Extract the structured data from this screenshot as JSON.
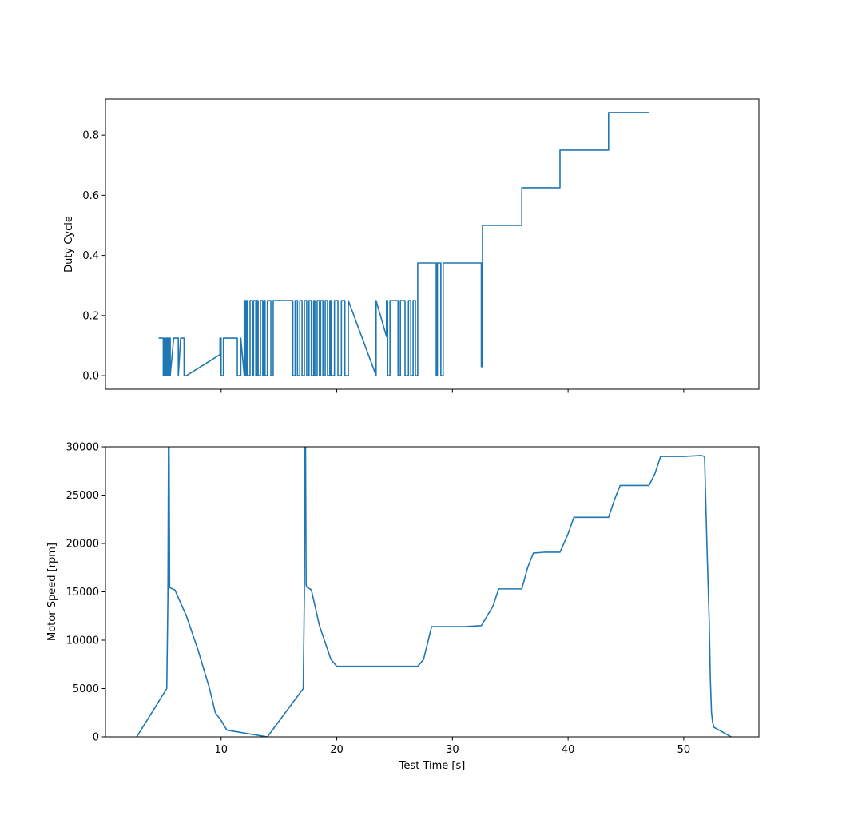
{
  "chart_data": [
    {
      "type": "line",
      "title": "",
      "xlabel": "",
      "ylabel": "Duty Cycle",
      "xlim": [
        0,
        56.5
      ],
      "ylim": [
        -0.045,
        0.92
      ],
      "xticks": [
        10,
        20,
        30,
        40,
        50
      ],
      "show_xtick_labels": false,
      "yticks": [
        0.0,
        0.2,
        0.4,
        0.6,
        0.8
      ],
      "ytick_labels": [
        "0.0",
        "0.2",
        "0.4",
        "0.6",
        "0.8"
      ],
      "grid": false,
      "color": "#1f77b4",
      "series": [
        {
          "name": "Duty Cycle",
          "x": [
            4.6,
            5.0,
            5.0,
            5.1,
            5.1,
            5.2,
            5.2,
            5.3,
            5.3,
            5.4,
            5.4,
            5.5,
            5.5,
            5.6,
            5.6,
            5.9,
            6.3,
            6.3,
            6.5,
            6.8,
            6.8,
            7.0,
            9.9,
            9.9,
            10.0,
            10.0,
            10.2,
            10.2,
            11.4,
            11.4,
            11.7,
            11.7,
            12.0,
            12.0,
            12.1,
            12.1,
            12.2,
            12.2,
            12.3,
            12.3,
            12.5,
            12.5,
            12.7,
            12.7,
            12.8,
            12.8,
            13.0,
            13.0,
            13.1,
            13.1,
            13.2,
            13.2,
            13.4,
            13.4,
            13.6,
            13.6,
            13.7,
            13.7,
            13.8,
            13.8,
            14.0,
            14.0,
            14.3,
            14.3,
            14.5,
            14.5,
            16.2,
            16.2,
            16.4,
            16.4,
            16.6,
            16.6,
            16.8,
            16.8,
            17.0,
            17.0,
            17.2,
            17.2,
            17.4,
            17.4,
            17.6,
            17.6,
            17.8,
            17.8,
            18.0,
            18.0,
            18.1,
            18.1,
            18.3,
            18.3,
            18.5,
            18.5,
            18.6,
            18.6,
            18.8,
            18.8,
            19.0,
            19.0,
            19.2,
            19.2,
            19.4,
            19.4,
            19.5,
            19.5,
            19.8,
            19.8,
            20.1,
            20.1,
            20.4,
            20.4,
            20.7,
            20.7,
            21.0,
            21.0,
            23.4,
            23.4,
            24.3,
            24.3,
            24.4,
            24.4,
            24.6,
            24.6,
            25.3,
            25.3,
            25.5,
            25.5,
            25.9,
            25.9,
            26.2,
            26.2,
            26.4,
            26.4,
            26.6,
            26.6,
            26.8,
            26.8,
            27.0,
            27.0,
            28.6,
            28.6,
            28.7,
            28.7,
            29.0,
            29.0,
            29.2,
            29.2,
            32.5,
            32.5,
            32.6,
            32.6,
            36.0,
            36.0,
            39.3,
            39.3,
            43.5,
            43.5,
            47.0
          ],
          "y": [
            0.125,
            0.125,
            0.0,
            0.0,
            0.125,
            0.125,
            0.0,
            0.0,
            0.125,
            0.125,
            0.0,
            0.0,
            0.125,
            0.125,
            0.0,
            0.125,
            0.125,
            0.0,
            0.125,
            0.125,
            0.0,
            0.0,
            0.07,
            0.125,
            0.125,
            0.0,
            0.0,
            0.125,
            0.125,
            0.0,
            0.0,
            0.125,
            0.0,
            0.25,
            0.25,
            0.0,
            0.0,
            0.25,
            0.25,
            0.0,
            0.0,
            0.25,
            0.25,
            0.0,
            0.0,
            0.25,
            0.25,
            0.0,
            0.0,
            0.25,
            0.25,
            0.0,
            0.0,
            0.25,
            0.25,
            0.0,
            0.0,
            0.25,
            0.25,
            0.0,
            0.0,
            0.25,
            0.25,
            0.0,
            0.0,
            0.25,
            0.25,
            0.0,
            0.0,
            0.25,
            0.25,
            0.0,
            0.0,
            0.25,
            0.25,
            0.0,
            0.0,
            0.25,
            0.25,
            0.0,
            0.0,
            0.25,
            0.25,
            0.0,
            0.0,
            0.25,
            0.25,
            0.0,
            0.0,
            0.25,
            0.25,
            0.0,
            0.0,
            0.25,
            0.25,
            0.0,
            0.0,
            0.25,
            0.25,
            0.0,
            0.0,
            0.25,
            0.25,
            0.0,
            0.0,
            0.25,
            0.25,
            0.0,
            0.0,
            0.25,
            0.25,
            0.0,
            0.0,
            0.25,
            0.0,
            0.25,
            0.13,
            0.25,
            0.25,
            0.0,
            0.0,
            0.25,
            0.25,
            0.0,
            0.0,
            0.25,
            0.25,
            0.0,
            0.0,
            0.25,
            0.25,
            0.0,
            0.0,
            0.25,
            0.25,
            0.0,
            0.0,
            0.375,
            0.375,
            0.0,
            0.0,
            0.375,
            0.375,
            0.0,
            0.0,
            0.375,
            0.375,
            0.03,
            0.03,
            0.5,
            0.5,
            0.625,
            0.625,
            0.75,
            0.75,
            0.875,
            0.875
          ]
        }
      ]
    },
    {
      "type": "line",
      "title": "",
      "xlabel": "Test Time [s]",
      "ylabel": "Motor Speed [rpm]",
      "xlim": [
        0,
        56.5
      ],
      "ylim": [
        0,
        30000
      ],
      "xticks": [
        10,
        20,
        30,
        40,
        50
      ],
      "xtick_labels": [
        "10",
        "20",
        "30",
        "40",
        "50"
      ],
      "yticks": [
        0,
        5000,
        10000,
        15000,
        20000,
        25000,
        30000
      ],
      "ytick_labels": [
        "0",
        "5000",
        "10000",
        "15000",
        "20000",
        "25000",
        "30000"
      ],
      "grid": false,
      "color": "#1f77b4",
      "series": [
        {
          "name": "Motor Speed",
          "x": [
            2.7,
            5.3,
            5.4,
            5.45,
            5.5,
            5.55,
            5.6,
            6.0,
            7.0,
            8.0,
            9.0,
            9.5,
            10.0,
            10.5,
            14.0,
            17.1,
            17.2,
            17.25,
            17.3,
            17.35,
            17.4,
            17.8,
            18.5,
            19.5,
            20.0,
            23.0,
            25.0,
            27.0,
            27.5,
            28.2,
            29.0,
            30.0,
            31.0,
            32.5,
            33.5,
            34.0,
            35.0,
            36.0,
            36.5,
            37.0,
            38.0,
            39.3,
            40.0,
            40.5,
            41.5,
            42.5,
            43.5,
            44.0,
            44.5,
            46.0,
            47.0,
            47.5,
            48.0,
            50.0,
            51.5,
            51.8,
            52.0,
            52.2,
            52.3,
            52.4,
            52.5,
            52.6,
            54.1
          ],
          "y": [
            0,
            5000,
            14500,
            30000,
            30000,
            15500,
            15400,
            15200,
            12500,
            9000,
            5000,
            2500,
            1700,
            700,
            0,
            5000,
            15000,
            30000,
            30000,
            15700,
            15500,
            15200,
            11500,
            8000,
            7300,
            7300,
            7300,
            7300,
            8000,
            11400,
            11400,
            11400,
            11400,
            11500,
            13500,
            15300,
            15300,
            15300,
            17500,
            19000,
            19100,
            19100,
            21000,
            22700,
            22700,
            22700,
            22700,
            24500,
            26000,
            26000,
            26000,
            27200,
            29000,
            29000,
            29100,
            29000,
            20000,
            12000,
            6000,
            2500,
            1500,
            1000,
            0
          ]
        }
      ]
    }
  ]
}
